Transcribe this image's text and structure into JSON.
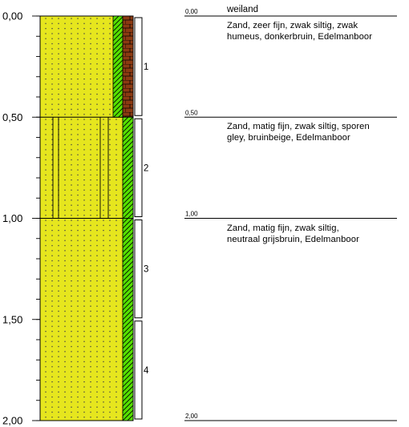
{
  "depth_axis": {
    "ticks": [
      {
        "depth": 0.0,
        "label": "0,00"
      },
      {
        "depth": 0.5,
        "label": "0,50"
      },
      {
        "depth": 1.0,
        "label": "1,00"
      },
      {
        "depth": 1.5,
        "label": "1,50"
      },
      {
        "depth": 2.0,
        "label": "2,00"
      }
    ],
    "minor_step": 0.1,
    "max_depth": 2.0
  },
  "colors": {
    "sand": "#e6e61e",
    "sand_dots": "#444444",
    "green_band": "#55e000",
    "humus_band": "#8b3a12",
    "line": "#000000"
  },
  "layers": [
    {
      "top": 0.0,
      "bottom": 0.5,
      "humus_band": true,
      "vertical_marks": false
    },
    {
      "top": 0.5,
      "bottom": 1.0,
      "humus_band": false,
      "vertical_marks": true
    },
    {
      "top": 1.0,
      "bottom": 2.0,
      "humus_band": false,
      "vertical_marks": false
    }
  ],
  "samples": [
    {
      "label": "1",
      "top": 0.0,
      "bottom": 0.5
    },
    {
      "label": "2",
      "top": 0.5,
      "bottom": 1.0
    },
    {
      "label": "3",
      "top": 1.0,
      "bottom": 1.5
    },
    {
      "label": "4",
      "top": 1.5,
      "bottom": 2.0
    }
  ],
  "top_label": "weiland",
  "descriptions": [
    {
      "depth_label": "0,00",
      "depth": 0.0,
      "lines": [
        "Zand, zeer fijn, zwak siltig, zwak",
        "humeus, donkerbruin, Edelmanboor"
      ]
    },
    {
      "depth_label": "0,50",
      "depth": 0.5,
      "lines": [
        "Zand, matig fijn, zwak siltig, sporen",
        "gley, bruinbeige, Edelmanboor"
      ]
    },
    {
      "depth_label": "1,00",
      "depth": 1.0,
      "lines": [
        "Zand, matig fijn, zwak siltig,",
        "neutraal grijsbruin, Edelmanboor"
      ]
    },
    {
      "depth_label": "2,00",
      "depth": 2.0,
      "lines": []
    }
  ]
}
